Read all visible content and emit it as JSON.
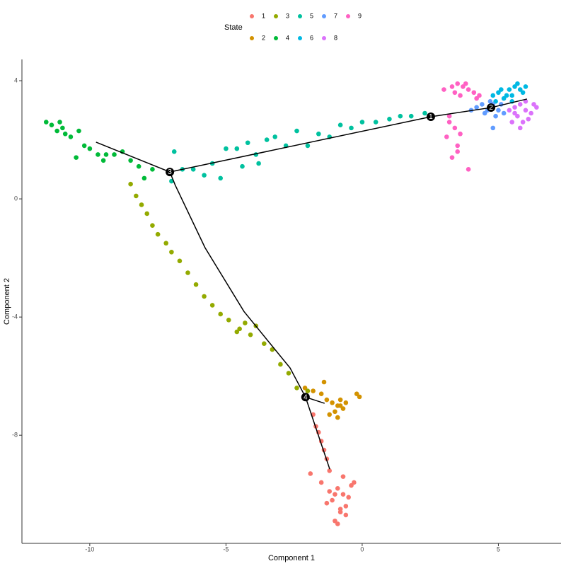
{
  "chart_data": {
    "type": "scatter",
    "xlabel": "Component 1",
    "ylabel": "Component 2",
    "xlim": [
      -12.49,
      7.3
    ],
    "ylim": [
      -11.66,
      4.72
    ],
    "xticks": [
      -10,
      -5,
      0,
      5
    ],
    "yticks": [
      4,
      0,
      -4,
      -8
    ],
    "grid": false,
    "legend_title": "State",
    "legend_position": "top",
    "series": [
      {
        "name": "1",
        "color": "#F8766D",
        "x": [
          -1.8,
          -1.7,
          -1.6,
          -1.5,
          -1.4,
          -1.3,
          -1.2,
          -1.5,
          -0.9,
          -0.7,
          -1.1,
          -0.6,
          -0.8,
          -1.0,
          -0.5,
          -1.3,
          -0.9,
          -0.4,
          -0.7,
          -1.2,
          -0.8,
          -0.6,
          -1.0,
          -0.3,
          -1.9
        ],
        "values": [
          -7.3,
          -7.7,
          -7.9,
          -8.2,
          -8.5,
          -8.8,
          -9.2,
          -9.6,
          -9.8,
          -10.0,
          -10.2,
          -10.4,
          -10.6,
          -10.9,
          -10.1,
          -10.3,
          -11.0,
          -9.7,
          -9.4,
          -9.9,
          -10.5,
          -10.7,
          -10.0,
          -9.6,
          -9.3
        ]
      },
      {
        "name": "2",
        "color": "#D39200",
        "x": [
          -2.1,
          -1.8,
          -1.5,
          -1.3,
          -1.1,
          -0.9,
          -0.8,
          -1.0,
          -0.7,
          -1.2,
          -0.6,
          -0.9,
          -0.2,
          -0.1,
          -1.4,
          -0.8
        ],
        "values": [
          -6.4,
          -6.5,
          -6.6,
          -6.8,
          -6.9,
          -7.0,
          -6.8,
          -7.2,
          -7.1,
          -7.3,
          -6.9,
          -7.4,
          -6.6,
          -6.7,
          -6.2,
          -7.0
        ]
      },
      {
        "name": "3",
        "color": "#93AA00",
        "x": [
          -8.5,
          -8.3,
          -8.1,
          -7.9,
          -7.7,
          -7.5,
          -7.2,
          -7.0,
          -6.7,
          -6.4,
          -6.1,
          -5.8,
          -5.5,
          -5.2,
          -4.9,
          -4.6,
          -4.3,
          -4.1,
          -3.9,
          -3.6,
          -3.3,
          -3.0,
          -2.7,
          -2.4,
          -2.0,
          -4.5
        ],
        "values": [
          0.5,
          0.1,
          -0.2,
          -0.5,
          -0.9,
          -1.2,
          -1.5,
          -1.8,
          -2.1,
          -2.5,
          -2.9,
          -3.3,
          -3.6,
          -3.9,
          -4.1,
          -4.5,
          -4.2,
          -4.6,
          -4.3,
          -4.9,
          -5.1,
          -5.6,
          -5.9,
          -6.4,
          -6.5,
          -4.4
        ]
      },
      {
        "name": "4",
        "color": "#00BA38",
        "x": [
          -11.4,
          -11.2,
          -11.0,
          -11.1,
          -10.9,
          -10.7,
          -10.4,
          -10.2,
          -10.0,
          -9.7,
          -9.4,
          -9.1,
          -8.8,
          -8.5,
          -8.2,
          -8.0,
          -7.7,
          -10.5,
          -9.5,
          -11.6
        ],
        "values": [
          2.5,
          2.3,
          2.4,
          2.6,
          2.2,
          2.1,
          2.3,
          1.8,
          1.7,
          1.5,
          1.5,
          1.5,
          1.6,
          1.3,
          1.1,
          0.7,
          1.0,
          1.4,
          1.3,
          2.6
        ]
      },
      {
        "name": "5",
        "color": "#00C19F",
        "x": [
          -7.0,
          -6.6,
          -6.2,
          -5.8,
          -5.5,
          -5.0,
          -4.6,
          -4.2,
          -3.9,
          -3.5,
          -3.2,
          -2.8,
          -2.4,
          -2.0,
          -1.6,
          -1.2,
          -0.8,
          -0.4,
          0.0,
          0.5,
          1.0,
          1.4,
          1.8,
          2.3,
          -5.2,
          -3.8,
          -4.4,
          -6.9
        ],
        "values": [
          0.6,
          1.0,
          1.0,
          0.8,
          1.2,
          1.7,
          1.7,
          1.9,
          1.5,
          2.0,
          2.1,
          1.8,
          2.3,
          1.8,
          2.2,
          2.1,
          2.5,
          2.4,
          2.6,
          2.6,
          2.7,
          2.8,
          2.8,
          2.9,
          0.7,
          1.2,
          1.1,
          1.6
        ]
      },
      {
        "name": "6",
        "color": "#00B9E3",
        "x": [
          4.8,
          5.0,
          5.2,
          5.4,
          5.6,
          5.8,
          5.9,
          5.3,
          5.5,
          5.7,
          6.0,
          4.9,
          5.1,
          5.5
        ],
        "values": [
          3.5,
          3.6,
          3.4,
          3.7,
          3.8,
          3.7,
          3.6,
          3.5,
          3.3,
          3.9,
          3.8,
          3.3,
          3.7,
          3.5
        ]
      },
      {
        "name": "7",
        "color": "#619CFF",
        "x": [
          4.2,
          4.4,
          4.6,
          4.8,
          5.0,
          5.2,
          4.5,
          4.9,
          5.1,
          4.7,
          4.0,
          4.8
        ],
        "values": [
          3.1,
          3.2,
          3.0,
          3.2,
          3.0,
          2.9,
          2.9,
          2.8,
          3.2,
          3.3,
          3.0,
          2.4
        ]
      },
      {
        "name": "8",
        "color": "#DB72FB",
        "x": [
          5.4,
          5.6,
          5.8,
          6.0,
          6.2,
          6.4,
          5.7,
          5.9,
          6.1,
          5.5,
          6.3,
          5.8,
          5.6,
          6.0
        ],
        "values": [
          3.0,
          3.1,
          3.2,
          3.0,
          2.9,
          3.1,
          2.8,
          2.6,
          2.7,
          2.6,
          3.2,
          2.4,
          2.9,
          3.3
        ]
      },
      {
        "name": "9",
        "color": "#FF61C3",
        "x": [
          3.0,
          3.3,
          3.5,
          3.7,
          3.9,
          4.1,
          3.4,
          3.6,
          3.8,
          4.3,
          3.2,
          3.4,
          3.1,
          3.5,
          3.6,
          3.9,
          3.3,
          3.5,
          3.2,
          4.2
        ],
        "values": [
          3.7,
          3.8,
          3.9,
          3.8,
          3.7,
          3.6,
          3.6,
          3.5,
          3.9,
          3.5,
          2.8,
          2.4,
          2.1,
          1.8,
          2.2,
          1.0,
          1.4,
          1.6,
          2.6,
          3.4
        ]
      }
    ],
    "trajectory": [
      {
        "x": [
          -9.77,
          -7.06,
          2.52,
          4.73,
          6.05
        ],
        "values": [
          1.92,
          0.91,
          2.78,
          3.09,
          3.38
        ]
      },
      {
        "x": [
          -7.06,
          -6.86,
          -5.77,
          -4.34,
          -2.65,
          -2.08,
          -1.38
        ],
        "values": [
          0.91,
          0.46,
          -1.65,
          -3.81,
          -5.72,
          -6.71,
          -6.92
        ]
      },
      {
        "x": [
          -2.08,
          -1.19
        ],
        "values": [
          -6.71,
          -9.15
        ]
      }
    ],
    "branch_points": [
      {
        "label": "1",
        "x": 2.52,
        "y": 2.78
      },
      {
        "label": "2",
        "x": 4.73,
        "y": 3.09
      },
      {
        "label": "3",
        "x": -7.06,
        "y": 0.91
      },
      {
        "label": "4",
        "x": -2.08,
        "y": -6.71
      }
    ]
  }
}
